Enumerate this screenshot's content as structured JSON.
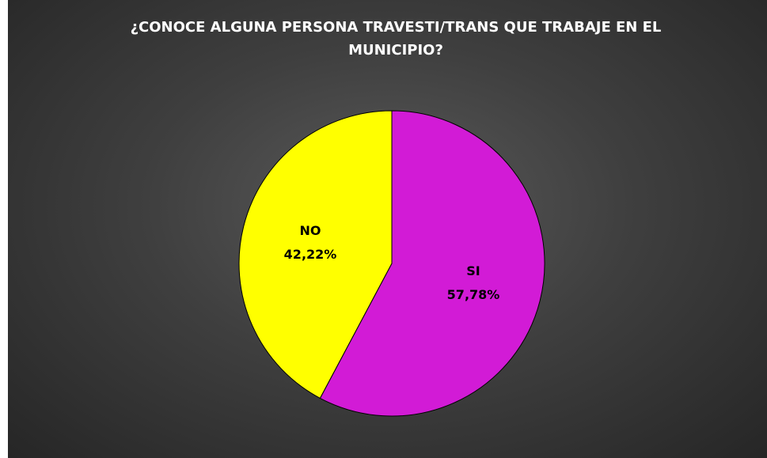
{
  "chart_data": {
    "type": "pie",
    "title": "¿CONOCE ALGUNA PERSONA TRAVESTI/TRANS QUE TRABAJE EN EL MUNICIPIO?",
    "categories": [
      "SI",
      "NO"
    ],
    "values": [
      57.78,
      42.22
    ],
    "value_labels": [
      "57,78%",
      "42,22%"
    ],
    "colors": [
      "#d21bd6",
      "#ffff00"
    ]
  }
}
